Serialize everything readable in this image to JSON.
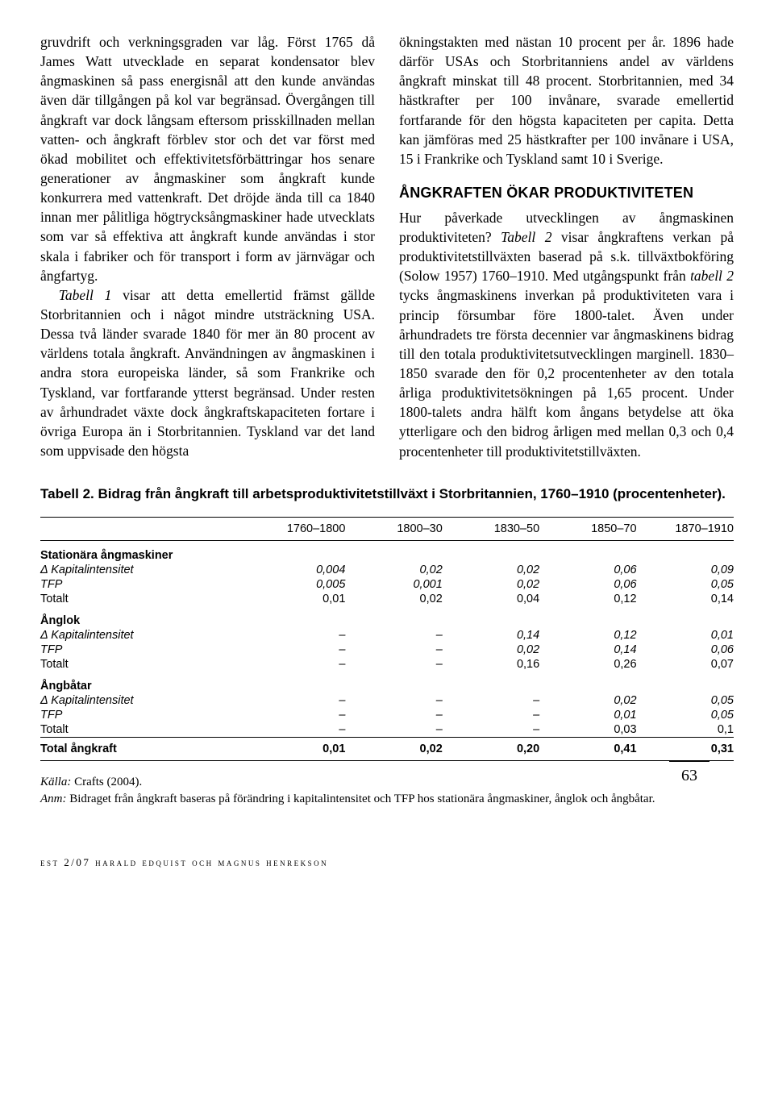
{
  "col_left": {
    "p1": "gruvdrift och verkningsgraden var låg. Först 1765 då James Watt utvecklade en separat kondensator blev ångmaskinen så pass energisnål att den kunde användas även där tillgången på kol var begränsad. Övergången till ångkraft var dock långsam eftersom prisskillnaden mellan vatten- och ångkraft förblev stor och det var först med ökad mobilitet och effektivitetsförbättringar hos senare generationer av ångmaskiner som ångkraft kunde konkurrera med vattenkraft. Det dröjde ända till ca 1840 innan mer pålitliga högtrycksångmaskiner hade utvecklats som var så effektiva att ångkraft kunde användas i stor skala i fabriker och för transport i form av järnvägar och ångfartyg.",
    "p2_pre": "Tabell 1",
    "p2": " visar att detta emellertid främst gällde Storbritannien och i något mindre utsträckning USA. Dessa två länder svarade 1840 för mer än 80 procent av världens totala ångkraft. Användningen av ångmaskinen i andra stora europeiska länder, så som Frankrike och Tyskland, var fortfarande ytterst begränsad. Under resten av århundradet växte dock ångkraftskapaciteten fortare i övriga Europa än i Storbritannien. Tyskland var det land som uppvisade den högsta"
  },
  "col_right": {
    "p1": "ökningstakten med nästan 10 procent per år. 1896 hade därför USAs och Storbritanniens andel av världens ångkraft minskat till 48 procent. Storbritannien, med 34 hästkrafter per 100 invånare, svarade emellertid fortfarande för den högsta kapaciteten per capita. Detta kan jämföras med 25 hästkrafter per 100 invånare i USA, 15 i Frankrike och Tyskland samt 10 i Sverige.",
    "heading": "ÅNGKRAFTEN ÖKAR PRODUKTIVITETEN",
    "p2a": "Hur påverkade utvecklingen av ångmaskinen produktiviteten? ",
    "p2_it": "Tabell 2",
    "p2b": " visar ångkraftens verkan på produktivitetstillväxten baserad på s.k. tillväxtbokföring (Solow 1957) 1760–1910. Med utgångspunkt från ",
    "p2_it2": "tabell 2",
    "p2c": " tycks ångmaskinens inverkan på produktiviteten vara i princip försumbar före 1800-talet. Även under århundradets tre första decennier var ångmaskinens bidrag till den totala produktivitetsutvecklingen marginell. 1830–1850 svarade den för 0,2 procentenheter av den totala årliga produktivitetsökningen på 1,65 procent. Under 1800-talets andra hälft kom ångans betydelse att öka ytterligare och den bidrog årligen med mellan 0,3 och 0,4 procentenheter till produktivitetstillväxten."
  },
  "table": {
    "title": "Tabell 2. Bidrag från ångkraft till arbetsproduktivitetstillväxt i Storbritannien, 1760–1910 (procentenheter).",
    "periods": [
      "1760–1800",
      "1800–30",
      "1830–50",
      "1850–70",
      "1870–1910"
    ],
    "groups": [
      {
        "name": "Stationära ångmaskiner",
        "rows": [
          {
            "label": "Δ Kapitalintensitet",
            "italic": true,
            "values": [
              "0,004",
              "0,02",
              "0,02",
              "0,06",
              "0,09"
            ]
          },
          {
            "label": "TFP",
            "italic": true,
            "values": [
              "0,005",
              "0,001",
              "0,02",
              "0,06",
              "0,05"
            ]
          },
          {
            "label": "Totalt",
            "italic": false,
            "values": [
              "0,01",
              "0,02",
              "0,04",
              "0,12",
              "0,14"
            ]
          }
        ]
      },
      {
        "name": "Ånglok",
        "rows": [
          {
            "label": "Δ Kapitalintensitet",
            "italic": true,
            "values": [
              "–",
              "–",
              "0,14",
              "0,12",
              "0,01"
            ]
          },
          {
            "label": "TFP",
            "italic": true,
            "values": [
              "–",
              "–",
              "0,02",
              "0,14",
              "0,06"
            ]
          },
          {
            "label": "Totalt",
            "italic": false,
            "values": [
              "–",
              "–",
              "0,16",
              "0,26",
              "0,07"
            ]
          }
        ]
      },
      {
        "name": "Ångbåtar",
        "rows": [
          {
            "label": "Δ Kapitalintensitet",
            "italic": true,
            "values": [
              "–",
              "–",
              "–",
              "0,02",
              "0,05"
            ]
          },
          {
            "label": "TFP",
            "italic": true,
            "values": [
              "–",
              "–",
              "–",
              "0,01",
              "0,05"
            ]
          },
          {
            "label": "Totalt",
            "italic": false,
            "values": [
              "–",
              "–",
              "–",
              "0,03",
              "0,1"
            ]
          }
        ]
      }
    ],
    "total": {
      "label": "Total ångkraft",
      "values": [
        "0,01",
        "0,02",
        "0,20",
        "0,41",
        "0,31"
      ]
    }
  },
  "source": {
    "kalla_label": "Källa:",
    "kalla_text": " Crafts (2004).",
    "anm_label": "Anm:",
    "anm_text": " Bidraget från ångkraft baseras på förändring i kapitalintensitet och TFP hos stationära ångmaskiner, ånglok och ångbåtar."
  },
  "page_number": "63",
  "footer": "est 2/07 harald edquist och magnus henrekson"
}
